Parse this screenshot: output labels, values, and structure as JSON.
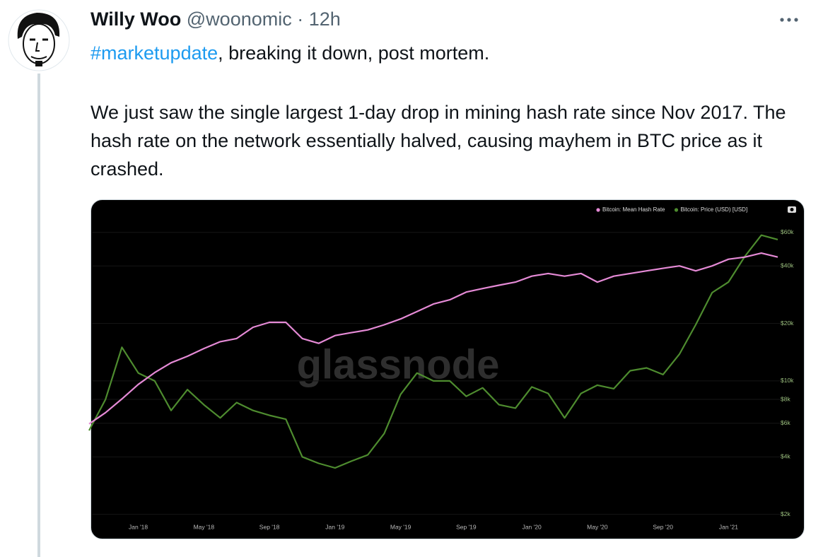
{
  "tweet": {
    "author": {
      "name": "Willy Woo",
      "handle": "@woonomic"
    },
    "separator": "·",
    "time": "12h",
    "hashtag": "#marketupdate",
    "first_line": ", breaking it down, post mortem.",
    "paragraph": "We just saw the single largest 1-day drop in mining hash rate since Nov 2017. The hash rate on the network essentially halved, causing mayhem in BTC price as it crashed."
  },
  "chart_data": {
    "type": "line",
    "watermark": "glassnode",
    "categories": [
      null,
      null,
      null,
      "Jan '18",
      null,
      null,
      null,
      "May '18",
      null,
      null,
      null,
      "Sep '18",
      null,
      null,
      null,
      "Jan '19",
      null,
      null,
      null,
      "May '19",
      null,
      null,
      null,
      "Sep '19",
      null,
      null,
      null,
      "Jan '20",
      null,
      null,
      null,
      "May '20",
      null,
      null,
      null,
      "Sep '20",
      null,
      null,
      null,
      "Jan '21",
      null,
      null,
      null
    ],
    "series": [
      {
        "name": "Bitcoin: Mean Hash Rate",
        "color": "#e58ad6",
        "axis": "y2",
        "values": [
          10,
          12,
          15,
          19,
          23,
          27,
          30,
          34,
          38,
          40,
          48,
          52,
          52,
          40,
          37,
          42,
          44,
          46,
          50,
          55,
          62,
          70,
          75,
          85,
          90,
          95,
          100,
          110,
          115,
          110,
          115,
          100,
          110,
          115,
          120,
          125,
          130,
          120,
          130,
          145,
          150,
          160,
          150
        ]
      },
      {
        "name": "Bitcoin: Price (USD) [USD]",
        "color": "#4e8c2f",
        "values": [
          5500,
          8000,
          15000,
          11000,
          10000,
          7000,
          9000,
          7500,
          6400,
          7700,
          7000,
          6600,
          6300,
          4000,
          3700,
          3500,
          3800,
          4100,
          5300,
          8500,
          11000,
          10000,
          10000,
          8300,
          9200,
          7500,
          7200,
          9300,
          8600,
          6400,
          8600,
          9500,
          9100,
          11300,
          11700,
          10800,
          13800,
          19700,
          29000,
          33000,
          45000,
          58000,
          55000
        ]
      }
    ],
    "ylim": [
      1800,
      80000
    ],
    "ylog": true,
    "yticks": [
      {
        "value": 2000,
        "label": "$2k"
      },
      {
        "value": 4000,
        "label": "$4k"
      },
      {
        "value": 6000,
        "label": "$6k"
      },
      {
        "value": 8000,
        "label": "$8k"
      },
      {
        "value": 10000,
        "label": "$10k"
      },
      {
        "value": 20000,
        "label": "$20k"
      },
      {
        "value": 40000,
        "label": "$40k"
      },
      {
        "value": 60000,
        "label": "$60k"
      }
    ],
    "y2lim": [
      2,
      330
    ],
    "y2log": true,
    "grid": true
  }
}
